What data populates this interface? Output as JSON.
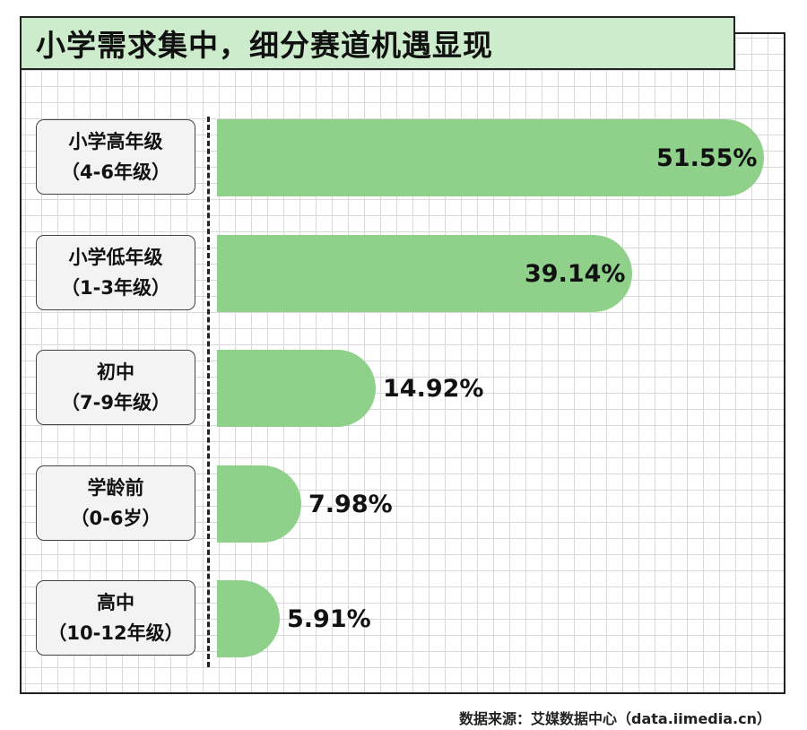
{
  "title": "小学需求集中，细分赛道机遇显现",
  "source": "数据来源：艾媒数据中心（data.iimedia.cn）",
  "colors": {
    "bar": "#8fd18b",
    "title_bg": "#cdeccb",
    "label_bg": "#f3f3f3"
  },
  "chart_data": {
    "type": "bar",
    "orientation": "horizontal",
    "title": "小学需求集中，细分赛道机遇显现",
    "unit": "%",
    "grid": true,
    "categories": [
      {
        "line1": "小学高年级",
        "line2": "（4-6年级）"
      },
      {
        "line1": "小学低年级",
        "line2": "（1-3年级）"
      },
      {
        "line1": "初中",
        "line2": "（7-9年级）"
      },
      {
        "line1": "学龄前",
        "line2": "（0-6岁）"
      },
      {
        "line1": "高中",
        "line2": "（10-12年级）"
      }
    ],
    "values": [
      51.55,
      39.14,
      14.92,
      7.98,
      5.91
    ],
    "value_labels": [
      "51.55%",
      "39.14%",
      "14.92%",
      "7.98%",
      "5.91%"
    ]
  }
}
